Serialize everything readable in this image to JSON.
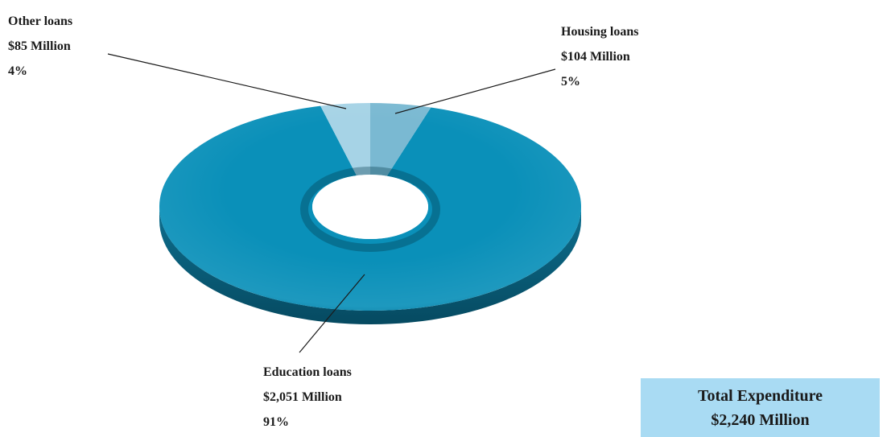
{
  "chart_data": {
    "type": "pie",
    "donut": true,
    "unit": "Million",
    "slices": [
      {
        "name": "Education loans",
        "value": 2051,
        "value_label": "$2,051 Million",
        "percent_label": "91%",
        "color": "#0a90b9"
      },
      {
        "name": "Other loans",
        "value": 85,
        "value_label": "$85 Million",
        "percent_label": "4%",
        "color": "#a6d3e6"
      },
      {
        "name": "Housing loans",
        "value": 104,
        "value_label": "$104 Million",
        "percent_label": "5%",
        "color": "#7ab9d2"
      }
    ],
    "total": {
      "title": "Total Expenditure",
      "value": 2240,
      "value_label": "$2,240 Million"
    }
  },
  "colors": {
    "box_background": "#a9dbf3",
    "text": "#1a1a1a"
  }
}
